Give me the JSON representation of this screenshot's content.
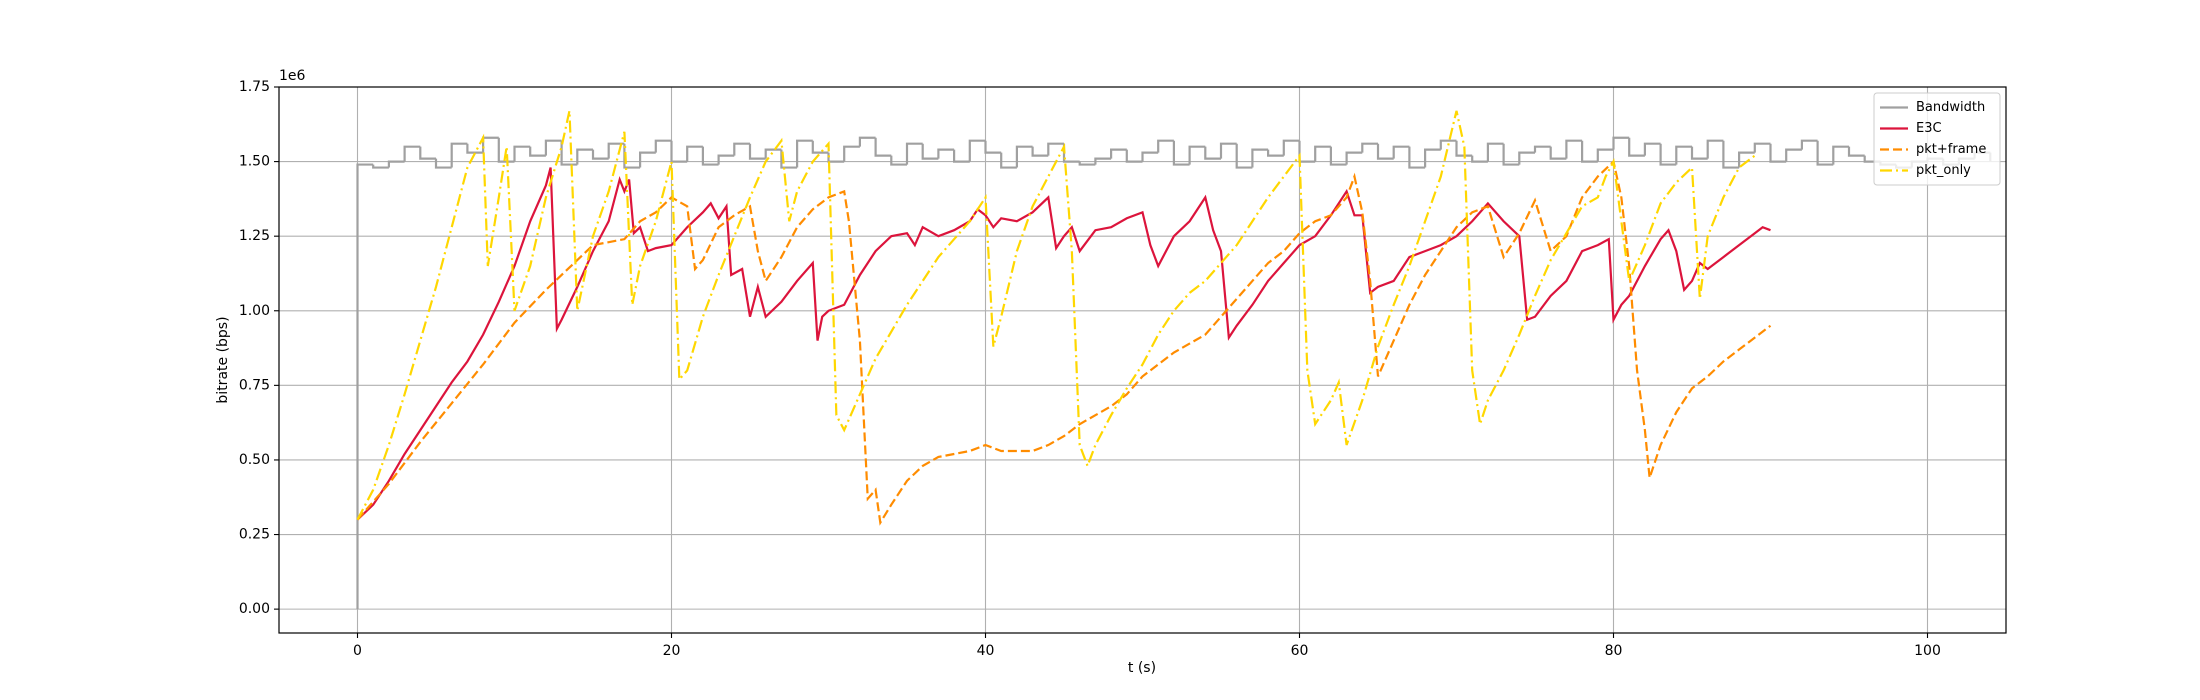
{
  "chart_data": {
    "type": "line",
    "x_label": "t (s)",
    "y_label": "bitrate (bps)",
    "y_offset_label": "1e6",
    "xlim": [
      -5,
      105
    ],
    "ylim": [
      -0.08,
      1.75
    ],
    "xticks": [
      0,
      20,
      40,
      60,
      80,
      100
    ],
    "yticks": [
      {
        "value": 0,
        "label": "0.00"
      },
      0.25,
      {
        "value": 0.5,
        "label": "0.50"
      },
      0.75,
      {
        "value": 1,
        "label": "1.00"
      },
      1.25,
      {
        "value": 1.5,
        "label": "1.50"
      },
      1.75
    ],
    "grid": true,
    "legend": "upper right",
    "series": [
      {
        "name": "Bandwidth",
        "color": "#a0a0a0",
        "linestyle": "solid",
        "drawstyle": "steps-post",
        "x": [
          0,
          0,
          1,
          2,
          3,
          4,
          5,
          6,
          7,
          8,
          9,
          10,
          11,
          12,
          13,
          14,
          15,
          16,
          17,
          18,
          19,
          20,
          21,
          22,
          23,
          24,
          25,
          26,
          27,
          28,
          29,
          30,
          31,
          32,
          33,
          34,
          35,
          36,
          37,
          38,
          39,
          40,
          41,
          42,
          43,
          44,
          45,
          46,
          47,
          48,
          49,
          50,
          51,
          52,
          53,
          54,
          55,
          56,
          57,
          58,
          59,
          60,
          61,
          62,
          63,
          64,
          65,
          66,
          67,
          68,
          69,
          70,
          71,
          72,
          73,
          74,
          75,
          76,
          77,
          78,
          79,
          80,
          81,
          82,
          83,
          84,
          85,
          86,
          87,
          88,
          89,
          90,
          91,
          92,
          93,
          94,
          95,
          96,
          97,
          98,
          99,
          100,
          101,
          102,
          103,
          104
        ],
        "values": [
          0,
          1.49,
          1.48,
          1.5,
          1.55,
          1.51,
          1.48,
          1.56,
          1.53,
          1.58,
          1.5,
          1.55,
          1.52,
          1.57,
          1.49,
          1.54,
          1.51,
          1.56,
          1.48,
          1.53,
          1.57,
          1.5,
          1.55,
          1.49,
          1.52,
          1.56,
          1.51,
          1.54,
          1.48,
          1.57,
          1.53,
          1.5,
          1.55,
          1.58,
          1.52,
          1.49,
          1.56,
          1.51,
          1.54,
          1.5,
          1.57,
          1.53,
          1.48,
          1.55,
          1.52,
          1.56,
          1.5,
          1.49,
          1.51,
          1.54,
          1.5,
          1.53,
          1.57,
          1.49,
          1.55,
          1.51,
          1.56,
          1.48,
          1.54,
          1.52,
          1.57,
          1.5,
          1.55,
          1.49,
          1.53,
          1.56,
          1.51,
          1.55,
          1.48,
          1.54,
          1.57,
          1.52,
          1.5,
          1.56,
          1.49,
          1.53,
          1.55,
          1.51,
          1.57,
          1.5,
          1.54,
          1.58,
          1.52,
          1.56,
          1.49,
          1.55,
          1.51,
          1.57,
          1.48,
          1.53,
          1.56,
          1.5,
          1.54,
          1.57,
          1.49,
          1.55,
          1.52,
          1.5,
          1.49,
          1.48,
          1.5,
          1.51,
          1.49,
          1.51,
          1.53,
          1.5
        ]
      },
      {
        "name": "E3C",
        "color": "#dc143c",
        "linestyle": "solid",
        "x": [
          0,
          1,
          2,
          3,
          4,
          5,
          6,
          7,
          8,
          9,
          10,
          11,
          12,
          12.3,
          12.7,
          13,
          14,
          15,
          16,
          16.7,
          17,
          17.3,
          17.6,
          18,
          18.5,
          19,
          20,
          21,
          22,
          22.5,
          23,
          23.5,
          23.8,
          24.5,
          25,
          25.5,
          26,
          27,
          28,
          29,
          29.3,
          29.6,
          30,
          31,
          32,
          33,
          34,
          35,
          35.5,
          36,
          37,
          38,
          39,
          39.5,
          40,
          40.5,
          41,
          42,
          43,
          44,
          44.5,
          45,
          45.5,
          46,
          47,
          48,
          49,
          50,
          50.5,
          51,
          52,
          53,
          54,
          54.5,
          55,
          55.5,
          56,
          57,
          58,
          59,
          60,
          61,
          62,
          63,
          63.5,
          64,
          64.5,
          65,
          66,
          67,
          68,
          69,
          70,
          71,
          72,
          73,
          74,
          74.5,
          75,
          76,
          77,
          78,
          79,
          79.7,
          80,
          80.5,
          81,
          82,
          83,
          83.5,
          84,
          84.5,
          85,
          85.5,
          86,
          87,
          88,
          89,
          89.5,
          90
        ],
        "values": [
          0.3,
          0.35,
          0.43,
          0.52,
          0.6,
          0.68,
          0.76,
          0.83,
          0.92,
          1.03,
          1.15,
          1.3,
          1.42,
          1.48,
          0.94,
          0.97,
          1.08,
          1.2,
          1.3,
          1.44,
          1.4,
          1.44,
          1.26,
          1.28,
          1.2,
          1.21,
          1.22,
          1.28,
          1.33,
          1.36,
          1.31,
          1.35,
          1.12,
          1.14,
          0.98,
          1.08,
          0.98,
          1.03,
          1.1,
          1.16,
          0.9,
          0.98,
          1.0,
          1.02,
          1.12,
          1.2,
          1.25,
          1.26,
          1.22,
          1.28,
          1.25,
          1.27,
          1.3,
          1.34,
          1.32,
          1.28,
          1.31,
          1.3,
          1.33,
          1.38,
          1.21,
          1.25,
          1.28,
          1.2,
          1.27,
          1.28,
          1.31,
          1.33,
          1.22,
          1.15,
          1.25,
          1.3,
          1.38,
          1.27,
          1.2,
          0.91,
          0.95,
          1.02,
          1.1,
          1.16,
          1.22,
          1.25,
          1.32,
          1.4,
          1.32,
          1.32,
          1.06,
          1.08,
          1.1,
          1.18,
          1.2,
          1.22,
          1.25,
          1.3,
          1.36,
          1.3,
          1.25,
          0.97,
          0.98,
          1.05,
          1.1,
          1.2,
          1.22,
          1.24,
          0.97,
          1.02,
          1.05,
          1.15,
          1.24,
          1.27,
          1.2,
          1.07,
          1.1,
          1.16,
          1.14,
          1.18,
          1.22,
          1.26,
          1.28,
          1.27
        ]
      },
      {
        "name": "pkt+frame",
        "color": "#ff8c00",
        "linestyle": "dashed",
        "x": [
          0,
          2,
          4,
          6,
          8,
          10,
          12,
          14,
          15,
          16,
          17,
          18,
          19,
          20,
          21,
          21.5,
          22,
          23,
          24,
          25,
          25.5,
          26,
          27,
          28,
          29,
          30,
          31,
          31.3,
          32,
          32.5,
          33,
          33.3,
          34,
          35,
          36,
          37,
          38,
          39,
          40,
          41,
          42,
          43,
          44,
          45,
          46,
          47,
          48,
          49,
          50,
          51,
          52,
          53,
          54,
          55,
          56,
          57,
          58,
          59,
          60,
          61,
          62,
          63,
          63.5,
          64,
          64.5,
          65,
          66,
          67,
          68,
          69,
          70,
          71,
          72,
          73,
          74,
          75,
          76,
          77,
          78,
          79,
          80,
          80.5,
          81,
          81.5,
          82,
          82.3,
          83,
          84,
          85,
          86,
          87,
          88,
          89,
          90
        ],
        "values": [
          0.3,
          0.42,
          0.56,
          0.69,
          0.82,
          0.96,
          1.07,
          1.17,
          1.22,
          1.23,
          1.24,
          1.3,
          1.33,
          1.38,
          1.35,
          1.14,
          1.17,
          1.28,
          1.32,
          1.35,
          1.2,
          1.1,
          1.18,
          1.28,
          1.34,
          1.38,
          1.4,
          1.3,
          0.9,
          0.37,
          0.4,
          0.29,
          0.35,
          0.43,
          0.48,
          0.51,
          0.52,
          0.53,
          0.55,
          0.53,
          0.53,
          0.53,
          0.55,
          0.58,
          0.62,
          0.65,
          0.68,
          0.72,
          0.78,
          0.82,
          0.86,
          0.89,
          0.92,
          0.98,
          1.04,
          1.1,
          1.16,
          1.2,
          1.26,
          1.3,
          1.32,
          1.38,
          1.45,
          1.33,
          1.1,
          0.78,
          0.9,
          1.02,
          1.12,
          1.2,
          1.28,
          1.33,
          1.35,
          1.18,
          1.26,
          1.37,
          1.2,
          1.25,
          1.38,
          1.45,
          1.5,
          1.38,
          1.15,
          0.8,
          0.6,
          0.44,
          0.55,
          0.66,
          0.74,
          0.78,
          0.83,
          0.87,
          0.91,
          0.95
        ]
      },
      {
        "name": "pkt_only",
        "color": "#ffd700",
        "linestyle": "dashdot",
        "x": [
          0,
          1,
          2,
          3,
          4,
          5,
          6,
          7,
          8,
          8.3,
          9,
          9.5,
          10,
          11,
          12,
          13,
          13.5,
          14,
          15,
          16,
          17,
          17.5,
          18,
          19,
          20,
          20.5,
          21,
          22,
          23,
          24,
          25,
          26,
          27,
          27.5,
          28,
          29,
          30,
          30.5,
          31,
          32,
          33,
          34,
          35,
          36,
          37,
          38,
          39,
          40,
          40.5,
          41,
          42,
          43,
          44,
          45,
          45.5,
          46,
          46.5,
          47,
          48,
          49,
          50,
          51,
          52,
          53,
          54,
          55,
          56,
          57,
          58,
          59,
          60,
          60.5,
          61,
          62,
          62.5,
          63,
          64,
          65,
          66,
          67,
          68,
          69,
          70,
          70.5,
          71,
          71.5,
          72,
          73,
          74,
          75,
          76,
          77,
          78,
          79,
          79.5,
          80,
          81,
          82,
          83,
          84,
          85,
          85.5,
          86,
          87,
          88,
          89
        ],
        "values": [
          0.3,
          0.4,
          0.55,
          0.72,
          0.9,
          1.08,
          1.28,
          1.48,
          1.58,
          1.15,
          1.38,
          1.55,
          1.0,
          1.15,
          1.38,
          1.55,
          1.67,
          1.0,
          1.25,
          1.4,
          1.6,
          1.02,
          1.15,
          1.3,
          1.5,
          0.77,
          0.8,
          0.98,
          1.12,
          1.25,
          1.38,
          1.5,
          1.57,
          1.3,
          1.4,
          1.5,
          1.56,
          0.65,
          0.6,
          0.72,
          0.84,
          0.93,
          1.02,
          1.1,
          1.18,
          1.24,
          1.3,
          1.38,
          0.88,
          0.98,
          1.2,
          1.35,
          1.45,
          1.55,
          1.2,
          0.55,
          0.48,
          0.55,
          0.65,
          0.74,
          0.82,
          0.92,
          1.0,
          1.06,
          1.1,
          1.16,
          1.22,
          1.3,
          1.38,
          1.45,
          1.52,
          0.8,
          0.62,
          0.7,
          0.76,
          0.55,
          0.7,
          0.88,
          1.02,
          1.15,
          1.3,
          1.45,
          1.67,
          1.55,
          0.8,
          0.62,
          0.7,
          0.8,
          0.92,
          1.05,
          1.17,
          1.26,
          1.35,
          1.38,
          1.45,
          1.5,
          1.1,
          1.22,
          1.36,
          1.43,
          1.48,
          1.04,
          1.25,
          1.38,
          1.48,
          1.52
        ]
      }
    ]
  }
}
